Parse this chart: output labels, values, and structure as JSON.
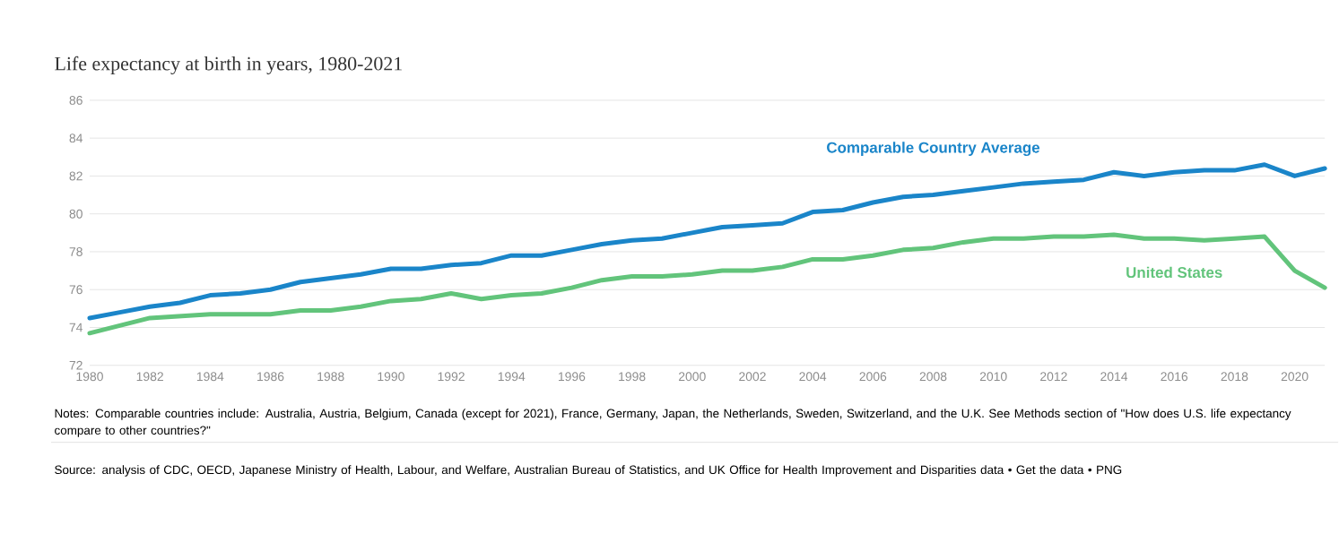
{
  "chart_data": {
    "type": "line",
    "title": "Life expectancy at birth in years, 1980-2021",
    "x": [
      1980,
      1981,
      1982,
      1983,
      1984,
      1985,
      1986,
      1987,
      1988,
      1989,
      1990,
      1991,
      1992,
      1993,
      1994,
      1995,
      1996,
      1997,
      1998,
      1999,
      2000,
      2001,
      2002,
      2003,
      2004,
      2005,
      2006,
      2007,
      2008,
      2009,
      2010,
      2011,
      2012,
      2013,
      2014,
      2015,
      2016,
      2017,
      2018,
      2019,
      2020,
      2021
    ],
    "series": [
      {
        "name": "Comparable Country Average",
        "color": "#1a85c9",
        "values": [
          74.5,
          74.8,
          75.1,
          75.3,
          75.7,
          75.8,
          76.0,
          76.4,
          76.6,
          76.8,
          77.1,
          77.1,
          77.3,
          77.4,
          77.8,
          77.8,
          78.1,
          78.4,
          78.6,
          78.7,
          79.0,
          79.3,
          79.4,
          79.5,
          80.1,
          80.2,
          80.6,
          80.9,
          81.0,
          81.2,
          81.4,
          81.6,
          81.7,
          81.8,
          82.2,
          82.0,
          82.2,
          82.3,
          82.3,
          82.6,
          82.0,
          82.4
        ]
      },
      {
        "name": "United States",
        "color": "#62c47b",
        "values": [
          73.7,
          74.1,
          74.5,
          74.6,
          74.7,
          74.7,
          74.7,
          74.9,
          74.9,
          75.1,
          75.4,
          75.5,
          75.8,
          75.5,
          75.7,
          75.8,
          76.1,
          76.5,
          76.7,
          76.7,
          76.8,
          77.0,
          77.0,
          77.2,
          77.6,
          77.6,
          77.8,
          78.1,
          78.2,
          78.5,
          78.7,
          78.7,
          78.8,
          78.8,
          78.9,
          78.7,
          78.7,
          78.6,
          78.7,
          78.8,
          77.0,
          76.1
        ]
      }
    ],
    "xlim": [
      1980,
      2021
    ],
    "ylim": [
      72,
      86
    ],
    "xticks": [
      1980,
      1982,
      1984,
      1986,
      1988,
      1990,
      1992,
      1994,
      1996,
      1998,
      2000,
      2002,
      2004,
      2006,
      2008,
      2010,
      2012,
      2014,
      2016,
      2018,
      2020
    ],
    "yticks": [
      72,
      74,
      76,
      78,
      80,
      82,
      84,
      86
    ],
    "grid": "y",
    "legend": false,
    "marker": "none",
    "line_style": "solid",
    "annotations": [
      "Notes: Comparable countries include: Australia, Austria, Belgium, Canada (except for 2021), France, Germany, Japan, the Netherlands, Sweden, Switzerland, and the U.K. See Methods section of \"How does U.S. life expectancy compare to other countries?\"",
      "Source: analysis of CDC, OECD, Japanese Ministry of Health, Labour, and Welfare, Australian Bureau of Statistics, and UK Office for Health Improvement and Disparities data • Get the data • PNG"
    ]
  }
}
